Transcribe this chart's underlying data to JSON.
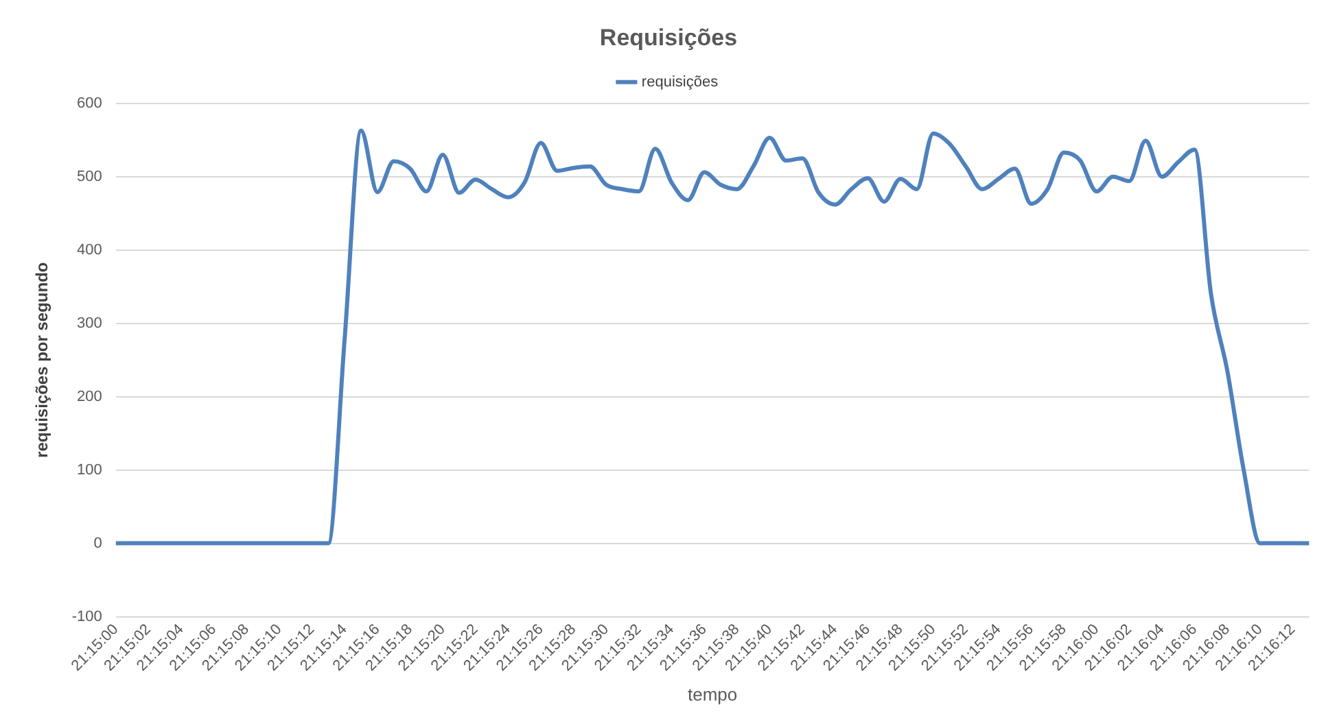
{
  "chart_data": {
    "type": "line",
    "title": "Requisições",
    "xlabel": "tempo",
    "ylabel": "requisições por segundo",
    "categories": [
      "21:15:00",
      null,
      "21:15:02",
      null,
      "21:15:04",
      null,
      "21:15:06",
      null,
      "21:15:08",
      null,
      "21:15:10",
      null,
      "21:15:12",
      null,
      "21:15:14",
      null,
      "21:15:16",
      null,
      "21:15:18",
      null,
      "21:15:20",
      null,
      "21:15:22",
      null,
      "21:15:24",
      null,
      "21:15:26",
      null,
      "21:15:28",
      null,
      "21:15:30",
      null,
      "21:15:32",
      null,
      "21:15:34",
      null,
      "21:15:36",
      null,
      "21:15:38",
      null,
      "21:15:40",
      null,
      "21:15:42",
      null,
      "21:15:44",
      null,
      "21:15:46",
      null,
      "21:15:48",
      null,
      "21:15:50",
      null,
      "21:15:52",
      null,
      "21:15:54",
      null,
      "21:15:56",
      null,
      "21:15:58",
      null,
      "21:16:00",
      null,
      "21:16:02",
      null,
      "21:16:04",
      null,
      "21:16:06",
      null,
      "21:16:08",
      null,
      "21:16:10",
      null,
      "21:16:12",
      null
    ],
    "series": [
      {
        "name": "requisições",
        "color": "#4f81bd",
        "values": [
          0,
          0,
          0,
          0,
          0,
          0,
          0,
          0,
          0,
          0,
          0,
          0,
          0,
          0,
          280,
          563,
          479,
          521,
          511,
          480,
          530,
          478,
          496,
          483,
          472,
          492,
          546,
          508,
          512,
          514,
          489,
          483,
          480,
          538,
          492,
          468,
          506,
          489,
          483,
          514,
          553,
          522,
          525,
          478,
          462,
          483,
          498,
          466,
          497,
          483,
          559,
          545,
          514,
          483,
          497,
          511,
          463,
          483,
          533,
          522,
          480,
          500,
          494,
          549,
          500,
          520,
          537,
          340,
          235,
          100,
          0,
          0,
          0,
          0
        ]
      }
    ],
    "ylim": [
      -100,
      600
    ],
    "yticks": [
      -100,
      0,
      100,
      200,
      300,
      400,
      500,
      600
    ],
    "grid": "y",
    "legend": "top",
    "marker": "none",
    "line_style": "solid"
  }
}
